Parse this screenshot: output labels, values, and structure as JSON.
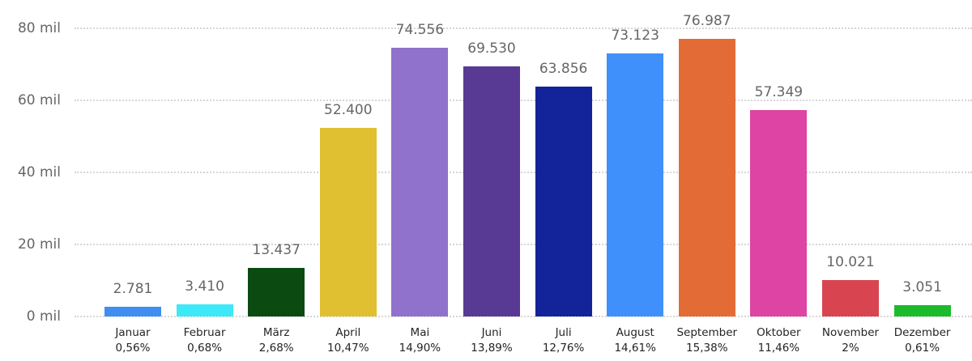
{
  "chart_data": {
    "type": "bar",
    "title": "",
    "xlabel": "",
    "ylabel": "",
    "ylim": [
      0,
      80000
    ],
    "grid": true,
    "legend": null,
    "y_ticks": [
      "0 mil",
      "20 mil",
      "40 mil",
      "60 mil",
      "80 mil"
    ],
    "y_tick_values": [
      0,
      20000,
      40000,
      60000,
      80000
    ],
    "categories": [
      "Januar",
      "Februar",
      "März",
      "April",
      "Mai",
      "Juni",
      "Juli",
      "August",
      "September",
      "Oktober",
      "November",
      "Dezember"
    ],
    "values": [
      2781,
      3410,
      13437,
      52400,
      74556,
      69530,
      63856,
      73123,
      76987,
      57349,
      10021,
      3051
    ],
    "value_labels": [
      "2.781",
      "3.410",
      "13.437",
      "52.400",
      "74.556",
      "69.530",
      "63.856",
      "73.123",
      "76.987",
      "57.349",
      "10.021",
      "3.051"
    ],
    "percent_labels": [
      "0,56%",
      "0,68%",
      "2,68%",
      "10,47%",
      "14,90%",
      "13,89%",
      "12,76%",
      "14,61%",
      "15,38%",
      "11,46%",
      "2%",
      "0,61%"
    ],
    "colors": [
      "#3f8ef0",
      "#3de8f7",
      "#0b4a11",
      "#e0c030",
      "#9071cc",
      "#583a94",
      "#13239a",
      "#3f90fb",
      "#e36c36",
      "#dd44a4",
      "#d84550",
      "#1bbb2b"
    ]
  }
}
